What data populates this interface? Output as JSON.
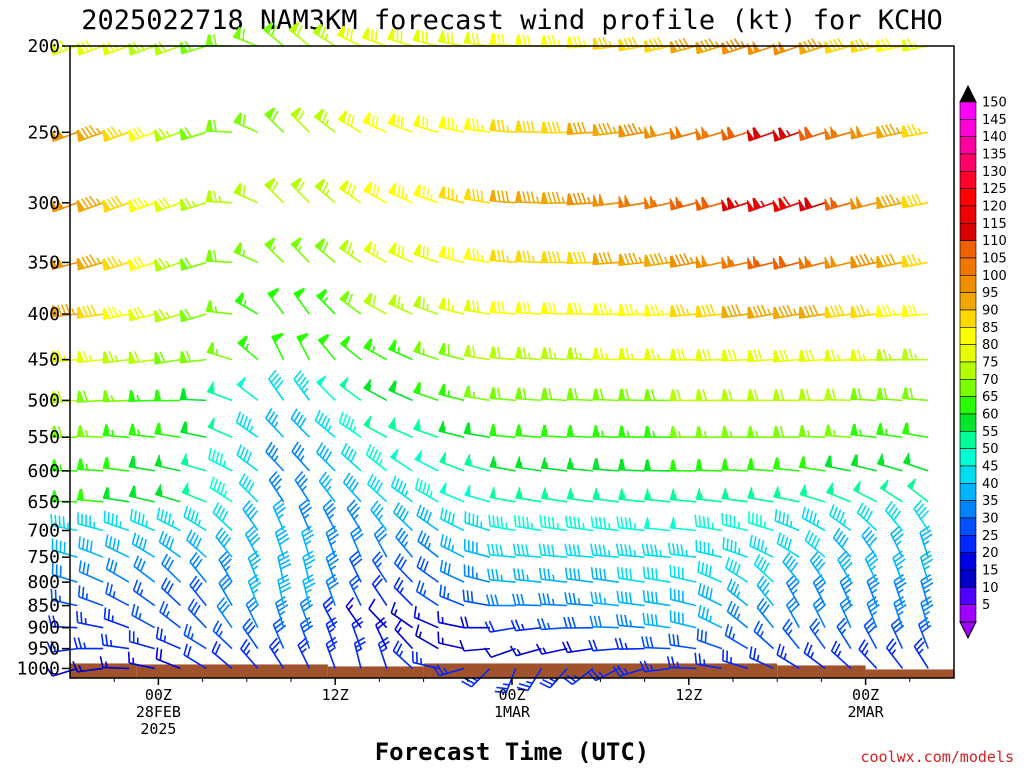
{
  "chart_data": {
    "type": "wind-barb-time-height",
    "title": "2025022718 NAM3KM forecast wind profile (kt) for KCHO",
    "xlabel": "Forecast Time (UTC)",
    "credit": "coolwx.com/models",
    "units": "kt",
    "y_axis": {
      "variable": "pressure (hPa)",
      "scale": "log",
      "range": [
        1025,
        200
      ],
      "tick_labels": [
        "200",
        "250",
        "300",
        "350",
        "400",
        "450",
        "500",
        "550",
        "600",
        "650",
        "700",
        "750",
        "800",
        "850",
        "900",
        "950",
        "1000"
      ]
    },
    "x_axis": {
      "range_hours_from_00Z_28FEB": [
        -6,
        54
      ],
      "tick_labels": [
        {
          "hour": 0,
          "lines": [
            "00Z",
            "28FEB",
            "2025"
          ]
        },
        {
          "hour": 12,
          "lines": [
            "12Z"
          ]
        },
        {
          "hour": 24,
          "lines": [
            "00Z",
            "1MAR"
          ]
        },
        {
          "hour": 36,
          "lines": [
            "12Z"
          ]
        },
        {
          "hour": 48,
          "lines": [
            "00Z",
            "2MAR"
          ]
        }
      ]
    },
    "colorbar": {
      "labels": [
        "150",
        "145",
        "140",
        "135",
        "130",
        "125",
        "120",
        "115",
        "110",
        "105",
        "100",
        "95",
        "90",
        "85",
        "80",
        "75",
        "70",
        "65",
        "60",
        "55",
        "50",
        "45",
        "40",
        "35",
        "30",
        "25",
        "20",
        "15",
        "10",
        "5"
      ],
      "colors": [
        "#ff00ff",
        "#ff00d8",
        "#ff00a0",
        "#ff0068",
        "#ff0028",
        "#ff0000",
        "#ee0000",
        "#d80000",
        "#f06000",
        "#f07800",
        "#f09000",
        "#f0a800",
        "#ffd800",
        "#ffff00",
        "#e6ff00",
        "#b4ff00",
        "#78ff00",
        "#28ff00",
        "#00e628",
        "#00ff96",
        "#00ffd2",
        "#00dcf0",
        "#00b4ff",
        "#0082ff",
        "#0050ff",
        "#0028ff",
        "#0000e6",
        "#0000c8",
        "#5000ff",
        "#a000ff"
      ]
    },
    "terrain_color": "#a0522d",
    "levels_hpa": [
      1000,
      950,
      900,
      850,
      800,
      750,
      700,
      650,
      600,
      550,
      500,
      450,
      400,
      350,
      300,
      250,
      200
    ],
    "wind_profile_estimated": [
      {
        "hour": -6,
        "speeds_kt": [
          10,
          22,
          22,
          25,
          30,
          38,
          45,
          62,
          65,
          68,
          72,
          78,
          95,
          100,
          100,
          100,
          80
        ],
        "dirs_deg": [
          250,
          260,
          270,
          280,
          285,
          285,
          280,
          270,
          270,
          270,
          265,
          265,
          265,
          255,
          250,
          250,
          250
        ]
      },
      {
        "hour": 3,
        "speeds_kt": [
          20,
          25,
          28,
          28,
          32,
          38,
          45,
          55,
          55,
          60,
          60,
          68,
          70,
          70,
          75,
          70,
          70
        ],
        "dirs_deg": [
          300,
          300,
          315,
          320,
          320,
          310,
          300,
          290,
          285,
          280,
          270,
          260,
          250,
          250,
          250,
          250,
          250
        ]
      },
      {
        "hour": 9,
        "speeds_kt": [
          25,
          30,
          35,
          40,
          40,
          38,
          35,
          32,
          32,
          35,
          40,
          60,
          60,
          65,
          70,
          70,
          68
        ],
        "dirs_deg": [
          330,
          340,
          345,
          350,
          350,
          345,
          340,
          330,
          320,
          320,
          330,
          340,
          330,
          320,
          320,
          320,
          315
        ]
      },
      {
        "hour": 15,
        "speeds_kt": [
          25,
          18,
          12,
          22,
          25,
          30,
          35,
          40,
          45,
          50,
          55,
          62,
          70,
          75,
          80,
          80,
          80
        ],
        "dirs_deg": [
          350,
          340,
          320,
          330,
          330,
          335,
          325,
          315,
          310,
          300,
          300,
          300,
          300,
          300,
          300,
          295,
          290
        ]
      },
      {
        "hour": 24,
        "speeds_kt": [
          25,
          10,
          20,
          30,
          35,
          40,
          45,
          52,
          55,
          60,
          68,
          72,
          80,
          85,
          90,
          85,
          80
        ],
        "dirs_deg": [
          200,
          250,
          260,
          270,
          275,
          275,
          280,
          280,
          280,
          275,
          275,
          275,
          275,
          275,
          275,
          275,
          275
        ]
      },
      {
        "hour": 36,
        "speeds_kt": [
          25,
          30,
          40,
          40,
          42,
          45,
          48,
          55,
          60,
          65,
          70,
          78,
          85,
          95,
          105,
          100,
          90
        ],
        "dirs_deg": [
          270,
          275,
          280,
          280,
          280,
          275,
          275,
          275,
          270,
          270,
          270,
          270,
          265,
          260,
          255,
          255,
          255
        ]
      },
      {
        "hour": 43,
        "speeds_kt": [
          25,
          25,
          30,
          35,
          40,
          42,
          45,
          55,
          62,
          68,
          72,
          80,
          95,
          110,
          120,
          115,
          100
        ],
        "dirs_deg": [
          300,
          320,
          330,
          330,
          320,
          300,
          290,
          280,
          275,
          270,
          270,
          265,
          260,
          255,
          250,
          250,
          250
        ]
      },
      {
        "hour": 53,
        "speeds_kt": [
          25,
          30,
          35,
          35,
          35,
          35,
          40,
          50,
          55,
          62,
          68,
          72,
          80,
          85,
          85,
          85,
          75
        ],
        "dirs_deg": [
          330,
          340,
          345,
          345,
          345,
          345,
          330,
          310,
          290,
          280,
          275,
          270,
          265,
          260,
          260,
          260,
          260
        ]
      }
    ]
  }
}
